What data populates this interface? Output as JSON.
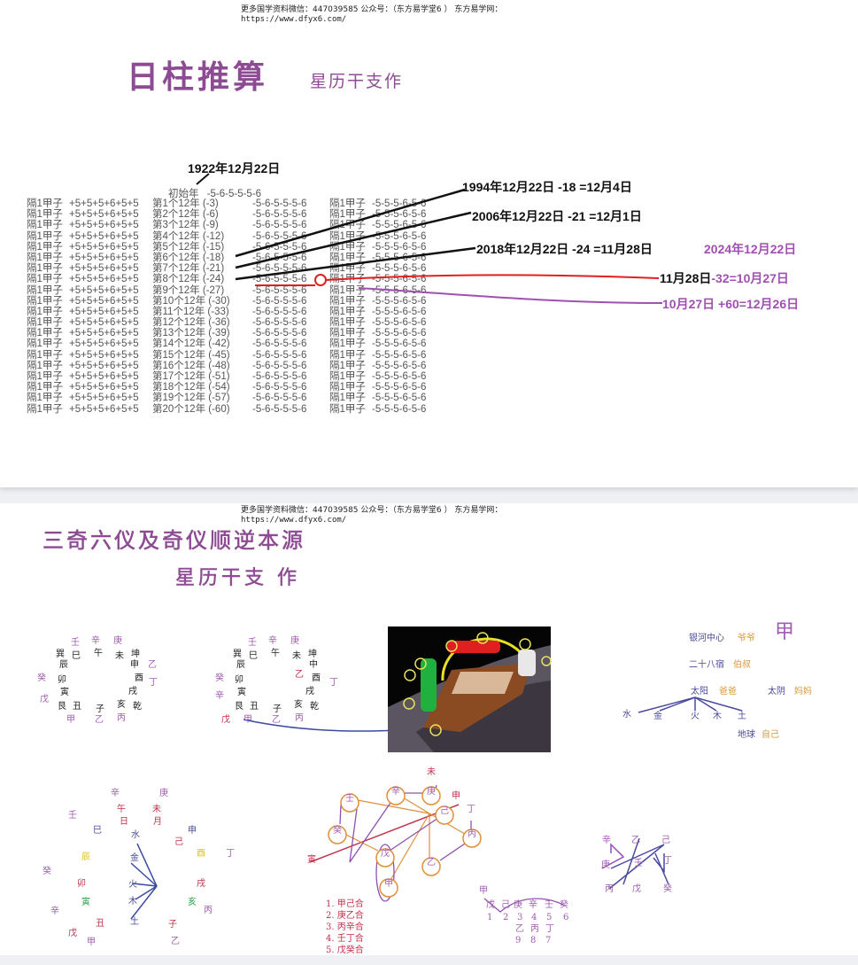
{
  "header": {
    "line1": "更多国学资料微信：447039585 公众号：（东方易学堂6 ） 东方易学网：",
    "line2": "https://www.dfyx6.com/"
  },
  "page1": {
    "title": "日柱推算",
    "author": "星历干支作",
    "start_date": "1922年12月22日",
    "start_row": {
      "label": "初始年",
      "seq": "-5-6-5-5-5-6"
    },
    "rows": [
      {
        "a": "隔1甲子",
        "b": "+5+5+5+6+5+5",
        "c": "第1个12年 (-3)",
        "d": "-5-6-5-5-5-6",
        "e": "隔1甲子",
        "f": "-5-5-5-6-5-6"
      },
      {
        "a": "隔1甲子",
        "b": "+5+5+5+6+5+5",
        "c": "第2个12年 (-6)",
        "d": "-5-6-5-5-5-6",
        "e": "隔1甲子",
        "f": "-5-5-5-6-5-6"
      },
      {
        "a": "隔1甲子",
        "b": "+5+5+5+6+5+5",
        "c": "第3个12年 (-9)",
        "d": "-5-6-5-5-5-6",
        "e": "隔1甲子",
        "f": "-5-5-5-6-5-6"
      },
      {
        "a": "隔1甲子",
        "b": "+5+5+5+6+5+5",
        "c": "第4个12年 (-12)",
        "d": "-5-6-5-5-5-6",
        "e": "隔1甲子",
        "f": "-5-5-5-6-5-6"
      },
      {
        "a": "隔1甲子",
        "b": "+5+5+5+6+5+5",
        "c": "第5个12年 (-15)",
        "d": "-5-6-5-5-5-6",
        "e": "隔1甲子",
        "f": "-5-5-5-6-5-6"
      },
      {
        "a": "隔1甲子",
        "b": "+5+5+5+6+5+5",
        "c": "第6个12年 (-18)",
        "d": "-5-6-5-5-5-6",
        "e": "隔1甲子",
        "f": "-5-5-5-6-5-6"
      },
      {
        "a": "隔1甲子",
        "b": "+5+5+5+6+5+5",
        "c": "第7个12年 (-21)",
        "d": "-5-6-5-5-5-6",
        "e": "隔1甲子",
        "f": "-5-5-5-6-5-6"
      },
      {
        "a": "隔1甲子",
        "b": "+5+5+5+6+5+5",
        "c": "第8个12年 (-24)",
        "d": "-5-6-5-5-5-6",
        "e": "隔1甲子",
        "f": "-5-5-5-6-5-6"
      },
      {
        "a": "隔1甲子",
        "b": "+5+5+5+6+5+5",
        "c": "第9个12年 (-27)",
        "d": "-5-6-5-5-5-6",
        "e": "隔1甲子",
        "f": "-5-5-5-6-5-6"
      },
      {
        "a": "隔1甲子",
        "b": "+5+5+5+6+5+5",
        "c": "第10个12年 (-30)",
        "d": "-5-6-5-5-5-6",
        "e": "隔1甲子",
        "f": "-5-5-5-6-5-6"
      },
      {
        "a": "隔1甲子",
        "b": "+5+5+5+6+5+5",
        "c": "第11个12年 (-33)",
        "d": "-5-6-5-5-5-6",
        "e": "隔1甲子",
        "f": "-5-5-5-6-5-6"
      },
      {
        "a": "隔1甲子",
        "b": "+5+5+5+6+5+5",
        "c": "第12个12年 (-36)",
        "d": "-5-6-5-5-5-6",
        "e": "隔1甲子",
        "f": "-5-5-5-6-5-6"
      },
      {
        "a": "隔1甲子",
        "b": "+5+5+5+6+5+5",
        "c": "第13个12年 (-39)",
        "d": "-5-6-5-5-5-6",
        "e": "隔1甲子",
        "f": "-5-5-5-6-5-6"
      },
      {
        "a": "隔1甲子",
        "b": "+5+5+5+6+5+5",
        "c": "第14个12年 (-42)",
        "d": "-5-6-5-5-5-6",
        "e": "隔1甲子",
        "f": "-5-5-5-6-5-6"
      },
      {
        "a": "隔1甲子",
        "b": "+5+5+5+6+5+5",
        "c": "第15个12年 (-45)",
        "d": "-5-6-5-5-5-6",
        "e": "隔1甲子",
        "f": "-5-5-5-6-5-6"
      },
      {
        "a": "隔1甲子",
        "b": "+5+5+5+6+5+5",
        "c": "第16个12年 (-48)",
        "d": "-5-6-5-5-5-6",
        "e": "隔1甲子",
        "f": "-5-5-5-6-5-6"
      },
      {
        "a": "隔1甲子",
        "b": "+5+5+5+6+5+5",
        "c": "第17个12年 (-51)",
        "d": "-5-6-5-5-5-6",
        "e": "隔1甲子",
        "f": "-5-5-5-6-5-6"
      },
      {
        "a": "隔1甲子",
        "b": "+5+5+5+6+5+5",
        "c": "第18个12年 (-54)",
        "d": "-5-6-5-5-5-6",
        "e": "隔1甲子",
        "f": "-5-5-5-6-5-6"
      },
      {
        "a": "隔1甲子",
        "b": "+5+5+5+6+5+5",
        "c": "第19个12年 (-57)",
        "d": "-5-6-5-5-5-6",
        "e": "隔1甲子",
        "f": "-5-5-5-6-5-6"
      },
      {
        "a": "隔1甲子",
        "b": "+5+5+5+6+5+5",
        "c": "第20个12年 (-60)",
        "d": "-5-6-5-5-5-6",
        "e": "隔1甲子",
        "f": "-5-5-5-6-5-6"
      }
    ],
    "annotations": {
      "a1994": "1994年12月22日 -18 =12月4日",
      "a2006": "2006年12月22日 -21 =12月1日",
      "a2018": "2018年12月22日 -24 =11月28日",
      "a2024": "2024年12月22日",
      "step1_black": "11月28日",
      "step1_purple": "-32=10月27日",
      "step2": "10月27日 +60=12月26日"
    },
    "colors": {
      "title": "#8d4b93",
      "red_line": "#e02020",
      "purple_line": "#a050b0"
    }
  },
  "page2": {
    "title": "三奇六仪及奇仪顺逆本源",
    "author": "星历干支 作",
    "wheel1": [
      "壬",
      "辛",
      "庚",
      "巽",
      "巳",
      "午",
      "未",
      "坤",
      "辰",
      "申",
      "乙",
      "癸",
      "卯",
      "酉",
      "丁",
      "寅",
      "戌",
      "戊",
      "艮",
      "丑",
      "子",
      "亥",
      "乾",
      "甲",
      "乙",
      "丙"
    ],
    "wheel2": [
      "壬",
      "辛",
      "庚",
      "巽",
      "巳",
      "午",
      "未",
      "坤",
      "辰",
      "中",
      "乙",
      "癸",
      "卯",
      "酉",
      "丁",
      "寅",
      "戌",
      "辛",
      "艮",
      "丑",
      "子",
      "亥",
      "乾",
      "戊",
      "甲",
      "乙",
      "丙"
    ],
    "tree": [
      "银河中心",
      "爷爷",
      "甲",
      "二十八宿",
      "伯叔",
      "太阳",
      "爸爸",
      "太阴",
      "妈妈",
      "水",
      "金",
      "火",
      "木",
      "土",
      "地球",
      "自己"
    ],
    "wheel3": [
      "辛",
      "庚",
      "壬",
      "午",
      "未",
      "日",
      "月",
      "巳",
      "水",
      "申",
      "己",
      "辰",
      "金",
      "酉",
      "丁",
      "癸",
      "卯",
      "火",
      "戌",
      "寅",
      "木",
      "亥",
      "丙",
      "辛",
      "丑",
      "土",
      "子",
      "戊",
      "甲",
      "乙"
    ],
    "combo_circles": [
      "壬",
      "辛",
      "庚",
      "己",
      "癸",
      "丙",
      "戊",
      "乙",
      "甲"
    ],
    "combo_labels": [
      "未",
      "申",
      "丁",
      "寅"
    ],
    "combo_list": [
      "1. 甲己合",
      "2. 庚乙合",
      "3. 丙辛合",
      "4. 壬丁合",
      "5. 戊癸合"
    ],
    "sequence": [
      "甲",
      "戊",
      "己",
      "庚",
      "辛",
      "壬",
      "癸",
      "1",
      "2",
      "3",
      "4",
      "5",
      "6",
      "乙",
      "丙",
      "丁",
      "9",
      "8",
      "7"
    ],
    "zigzag": [
      "辛",
      "乙",
      "己",
      "庚",
      "壬",
      "丁",
      "丙",
      "戊",
      "癸"
    ],
    "colors": {
      "purple": "#a05cb0",
      "black": "#222",
      "red": "#c0304a",
      "blue": "#4a4a9a",
      "orange": "#d9983a",
      "yellow": "#e0c020",
      "green": "#30a050"
    }
  }
}
